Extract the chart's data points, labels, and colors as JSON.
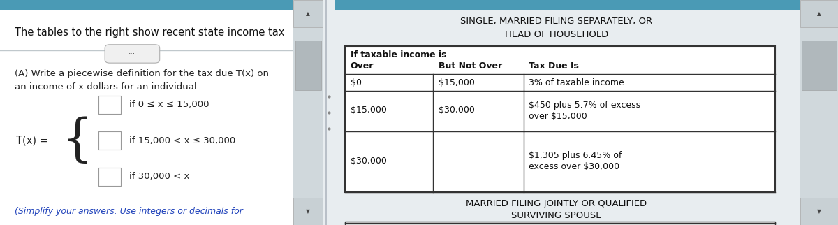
{
  "bg_color": "#e8edf0",
  "left_panel_bg": "#ffffff",
  "top_text": "The tables to the right show recent state income tax",
  "question_text_line1": "(A) Write a piecewise definition for the tax due T(x) on",
  "question_text_line2": "an income of x dollars for an individual.",
  "condition1": "if 0 ≤ x ≤ 15,000",
  "condition2": "if 15,000 < x ≤ 30,000",
  "condition3": "if 30,000 < x",
  "tx_label": "T(x) =",
  "bottom_text": "(Simplify your answers. Use integers or decimals for",
  "table_title1": "SINGLE, MARRIED FILING SEPARATELY, OR",
  "table_title2": "HEAD OF HOUSEHOLD",
  "col_header1": "If taxable income is",
  "col_header2": "Over",
  "col_header3": "But Not Over",
  "col_header4": "Tax Due Is",
  "row1_over": "$0",
  "row1_but": "$15,000",
  "row1_tax": "3% of taxable income",
  "row2_over": "$15,000",
  "row2_but": "$30,000",
  "row2_tax_line1": "$450 plus 5.7% of excess",
  "row2_tax_line2": "over $15,000",
  "row3_over": "$30,000",
  "row3_but": "",
  "row3_tax_line1": "$1,305 plus 6.45% of",
  "row3_tax_line2": "excess over $30,000",
  "footer_title1": "MARRIED FILING JOINTLY OR QUALIFIED",
  "footer_title2": "SURVIVING SPOUSE",
  "teal_border": "#4a9ab5",
  "divider_color": "#c0c8cc",
  "border_color": "#555555",
  "text_color": "#222222",
  "scrollbar_bg": "#d0d8dc",
  "scrollbar_thumb": "#b0b8bc",
  "scrollbar_arrow_bg": "#c8d0d4"
}
